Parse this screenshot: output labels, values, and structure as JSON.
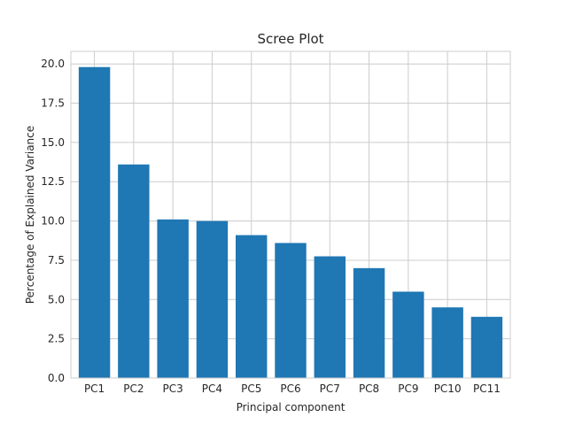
{
  "chart_data": {
    "type": "bar",
    "title": "Scree Plot",
    "xlabel": "Principal component",
    "ylabel": "Percentage of Explained Variance",
    "categories": [
      "PC1",
      "PC2",
      "PC3",
      "PC4",
      "PC5",
      "PC6",
      "PC7",
      "PC8",
      "PC9",
      "PC10",
      "PC11"
    ],
    "values": [
      19.8,
      13.6,
      10.1,
      10.0,
      9.1,
      8.6,
      7.75,
      7.0,
      5.5,
      4.5,
      3.9
    ],
    "ylim": [
      0,
      20.8
    ],
    "yticks": [
      0.0,
      2.5,
      5.0,
      7.5,
      10.0,
      12.5,
      15.0,
      17.5,
      20.0
    ],
    "ytick_labels": [
      "0.0",
      "2.5",
      "5.0",
      "7.5",
      "10.0",
      "12.5",
      "15.0",
      "17.5",
      "20.0"
    ],
    "grid": true,
    "bar_color": "#1f77b4",
    "grid_color": "#cccccc",
    "text_color": "#262626"
  }
}
